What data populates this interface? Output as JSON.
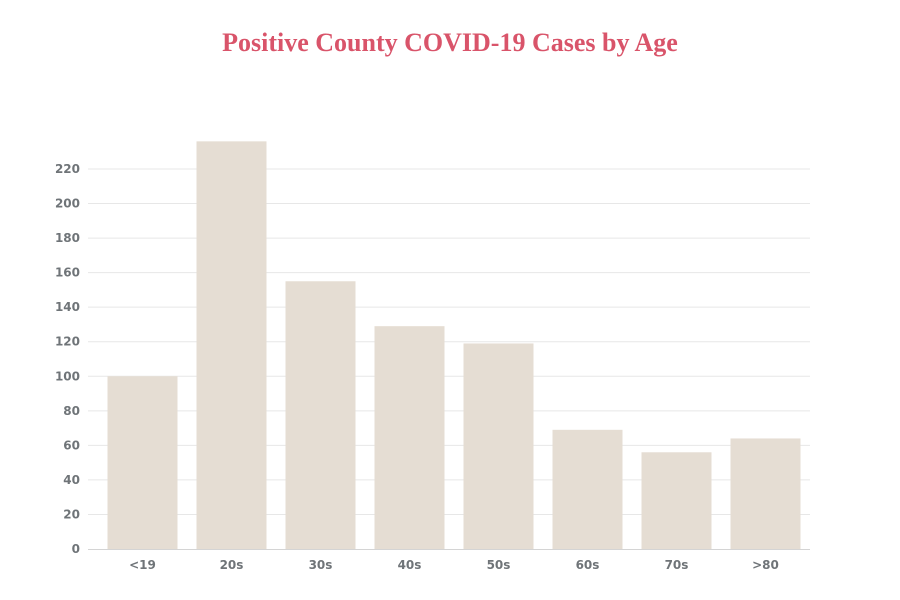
{
  "colors": {
    "title": "#d9546a",
    "bar": "#e5ddd3",
    "grid": "#e7e7e7",
    "axis": "#d4d4d4",
    "tick_text": "#6f7478"
  },
  "chart_data": {
    "type": "bar",
    "title": "Positive County COVID-19 Cases by Age",
    "xlabel": "",
    "ylabel": "",
    "categories": [
      "<19",
      "20s",
      "30s",
      "40s",
      "50s",
      "60s",
      "70s",
      ">80"
    ],
    "values": [
      100,
      236,
      155,
      129,
      119,
      69,
      56,
      64
    ],
    "ylim": [
      0,
      230
    ],
    "yticks": [
      0,
      20,
      40,
      60,
      80,
      100,
      120,
      140,
      160,
      180,
      200,
      220
    ],
    "grid": true,
    "legend": "none"
  }
}
